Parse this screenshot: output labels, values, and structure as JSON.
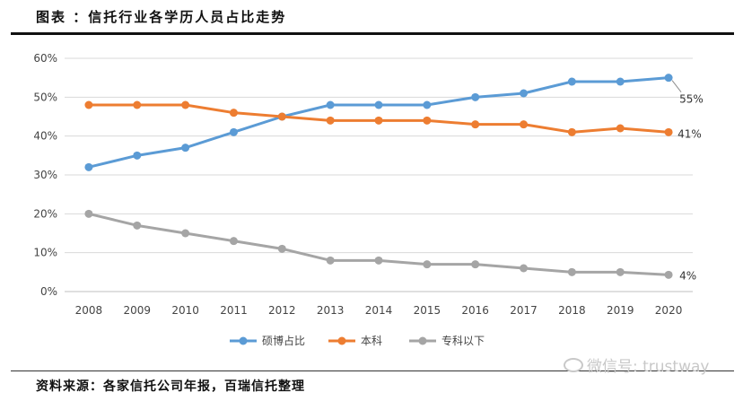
{
  "header": {
    "title": "图表 ：信托行业各学历人员占比走势"
  },
  "footer": {
    "source": "资料来源：各家信托公司年报，百瑞信托整理"
  },
  "watermark": {
    "text": "微信号: trustway",
    "icon": "wechat-icon"
  },
  "chart_data": {
    "type": "line",
    "title": "",
    "xlabel": "",
    "ylabel": "",
    "ylim": [
      0,
      60
    ],
    "yticks": [
      "0%",
      "10%",
      "20%",
      "30%",
      "40%",
      "50%",
      "60%"
    ],
    "categories": [
      "2008",
      "2009",
      "2010",
      "2011",
      "2012",
      "2013",
      "2014",
      "2015",
      "2016",
      "2017",
      "2018",
      "2019",
      "2020"
    ],
    "series": [
      {
        "name": "硕博占比",
        "color": "#5b9bd5",
        "values": [
          32,
          35,
          37,
          41,
          45,
          48,
          48,
          48,
          50,
          51,
          54,
          54,
          55
        ]
      },
      {
        "name": "本科",
        "color": "#ed7d31",
        "values": [
          48,
          48,
          48,
          46,
          45,
          44,
          44,
          44,
          43,
          43,
          41,
          42,
          41
        ]
      },
      {
        "name": "专科以下",
        "color": "#a5a5a5",
        "values": [
          20,
          17,
          15,
          13,
          11,
          8,
          8,
          7,
          7,
          6,
          5,
          5,
          4.3
        ]
      }
    ],
    "annotations": [
      "55%",
      "41%",
      "4%"
    ],
    "legend_position": "bottom",
    "grid": true
  }
}
